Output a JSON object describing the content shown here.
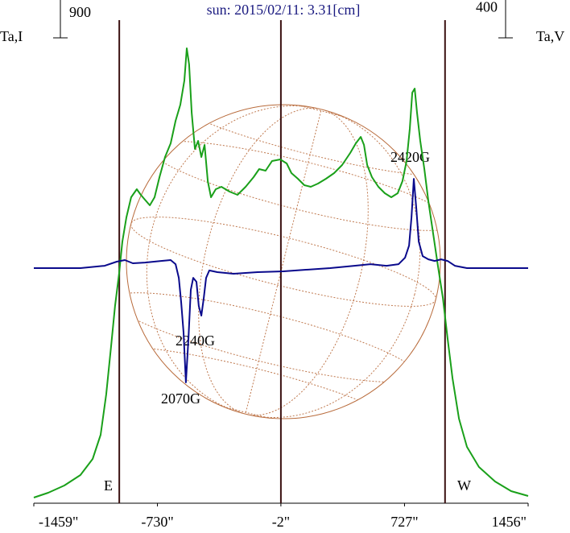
{
  "chart_data": {
    "type": "line",
    "title": "sun: 2015/02/11: 3.31[cm]",
    "xlim": [
      -1459,
      1456
    ],
    "xticks": [
      {
        "value": -1459,
        "label": "-1459\""
      },
      {
        "value": -730,
        "label": "-730\""
      },
      {
        "value": -2,
        "label": "-2\""
      },
      {
        "value": 727,
        "label": "727\""
      },
      {
        "value": 1456,
        "label": "1456\""
      }
    ],
    "ylim": [
      0,
      9000
    ],
    "y2lim": [
      -1600,
      1688
    ],
    "vlines": [
      -955,
      -2,
      966
    ],
    "limb_labels": [
      "E",
      "W"
    ],
    "scale_bars": [
      900,
      400
    ],
    "annotations": [
      "2420G",
      "2240G",
      "2070G"
    ],
    "series": [
      {
        "name": "Ta,I",
        "color": "#1aa01a",
        "x": [
          -1459,
          -1374,
          -1279,
          -1184,
          -1112,
          -1065,
          -1032,
          -1003,
          -980,
          -956,
          -937,
          -913,
          -885,
          -852,
          -828,
          -804,
          -775,
          -747,
          -718,
          -685,
          -652,
          -623,
          -595,
          -571,
          -557,
          -543,
          -528,
          -509,
          -490,
          -471,
          -452,
          -433,
          -414,
          -386,
          -353,
          -305,
          -258,
          -210,
          -163,
          -130,
          -92,
          -54,
          -6,
          32,
          60,
          98,
          136,
          174,
          217,
          264,
          312,
          359,
          407,
          440,
          469,
          488,
          507,
          535,
          573,
          611,
          649,
          687,
          715,
          739,
          758,
          773,
          787,
          801,
          820,
          844,
          868,
          896,
          924,
          953,
          981,
          1010,
          1048,
          1095,
          1166,
          1261,
          1356,
          1456
        ],
        "values": [
          105,
          195,
          330,
          525,
          825,
          1275,
          2025,
          2925,
          3675,
          4275,
          4875,
          5325,
          5700,
          5850,
          5745,
          5655,
          5550,
          5700,
          6075,
          6450,
          6705,
          7125,
          7425,
          7875,
          8475,
          8175,
          7275,
          6600,
          6750,
          6450,
          6675,
          6000,
          5700,
          5850,
          5895,
          5805,
          5745,
          5895,
          6075,
          6225,
          6195,
          6375,
          6405,
          6330,
          6150,
          6045,
          5925,
          5895,
          5955,
          6045,
          6150,
          6300,
          6525,
          6705,
          6825,
          6675,
          6300,
          6075,
          5895,
          5775,
          5700,
          5775,
          6000,
          6375,
          6975,
          7650,
          7725,
          7275,
          6750,
          6225,
          5625,
          5025,
          4425,
          3825,
          3075,
          2325,
          1575,
          1050,
          675,
          405,
          225,
          135
        ]
      },
      {
        "name": "Ta,V",
        "color": "#0a0a8c",
        "axis": "y2",
        "x": [
          -1459,
          -1184,
          -1041,
          -970,
          -922,
          -875,
          -804,
          -709,
          -652,
          -623,
          -604,
          -590,
          -576,
          -562,
          -547,
          -533,
          -519,
          -500,
          -486,
          -471,
          -457,
          -443,
          -424,
          -377,
          -281,
          -139,
          13,
          146,
          288,
          431,
          526,
          621,
          692,
          730,
          754,
          768,
          782,
          797,
          811,
          834,
          868,
          905,
          943,
          981,
          1024,
          1095,
          1456
        ],
        "values": [
          0,
          0,
          16,
          44,
          55,
          33,
          38,
          49,
          55,
          27,
          -66,
          -230,
          -438,
          -778,
          -477,
          -148,
          -66,
          -93,
          -258,
          -323,
          -203,
          -66,
          -16,
          -27,
          -38,
          -27,
          -22,
          -11,
          0,
          16,
          27,
          16,
          27,
          71,
          153,
          345,
          608,
          400,
          181,
          82,
          60,
          49,
          60,
          49,
          16,
          0,
          0
        ]
      }
    ]
  }
}
